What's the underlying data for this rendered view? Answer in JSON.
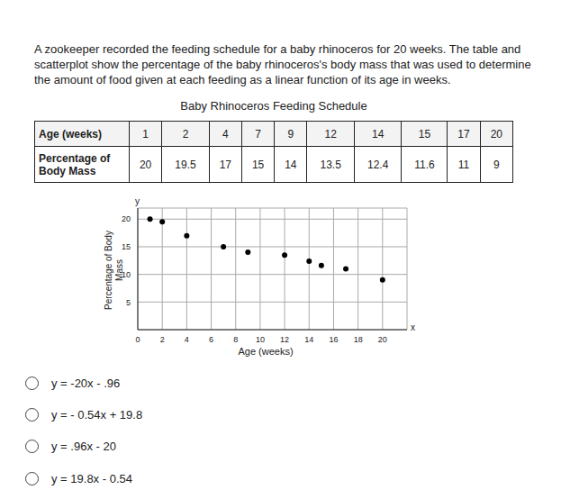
{
  "problem": {
    "text": "A zookeeper recorded the feeding schedule for a baby rhinoceros for 20 weeks. The table and scatterplot show the percentage of the baby rhinoceros's body mass that was used to determine the amount of food given at each feeding as a linear function of its age in weeks."
  },
  "table": {
    "title": "Baby Rhinoceros Feeding Schedule",
    "rows": [
      [
        "Age (weeks)",
        1,
        2,
        4,
        7,
        9,
        12,
        14,
        15,
        17,
        20
      ],
      [
        "Percentage of Body Mass",
        20,
        19.5,
        17,
        15,
        14,
        13.5,
        12.4,
        11.6,
        11,
        9
      ]
    ]
  },
  "chart_data": {
    "type": "scatter",
    "x": [
      1,
      2,
      4,
      7,
      9,
      12,
      14,
      15,
      17,
      20
    ],
    "values": [
      20,
      19.5,
      17,
      15,
      14,
      13.5,
      12.4,
      11.6,
      11,
      9
    ],
    "xlabel": "Age (weeks)",
    "ylabel": "Percentage of Body Mass",
    "x_axis_letter": "x",
    "y_axis_letter": "y",
    "xlim": [
      0,
      22
    ],
    "ylim": [
      0,
      22
    ],
    "xticks": [
      0,
      2,
      4,
      6,
      8,
      10,
      12,
      14,
      16,
      18,
      20
    ],
    "yticks": [
      5,
      10,
      15,
      20
    ],
    "grid": true,
    "color": "#000000",
    "marker": "circle"
  },
  "choices": [
    "y = -20x - .96",
    "y = - 0.54x + 19.8",
    "y = .96x - 20",
    "y = 19.8x - 0.54"
  ]
}
